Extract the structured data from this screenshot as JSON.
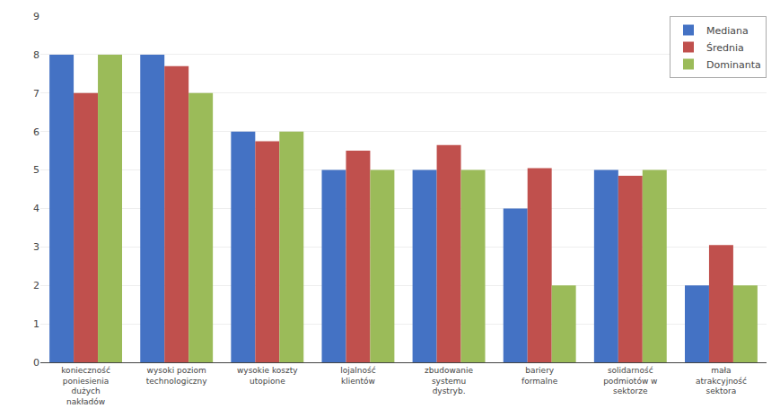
{
  "chart_data": {
    "type": "bar",
    "categories": [
      "konieczność\nponiesienia\ndużych\nnakładów",
      "wysoki poziom\ntechnologiczny",
      "wysokie koszty\nutopione",
      "lojalność\nklientów",
      "zbudowanie\nsystemu\ndystryb.",
      "bariery\nformalne",
      "solidarność\npodmiotów w\nsektorze",
      "mała\natrakcyjność\nsektora"
    ],
    "series": [
      {
        "name": "Mediana",
        "color": "#4472C4",
        "values": [
          8.0,
          8.0,
          6.0,
          5.0,
          5.0,
          4.0,
          5.0,
          2.0
        ]
      },
      {
        "name": "Średnia",
        "color": "#C0504D",
        "values": [
          7.0,
          7.7,
          5.75,
          5.5,
          5.65,
          5.05,
          4.85,
          3.05
        ]
      },
      {
        "name": "Dominanta",
        "color": "#9BBB59",
        "values": [
          8.0,
          7.0,
          6.0,
          5.0,
          5.0,
          2.0,
          5.0,
          2.0
        ]
      }
    ],
    "ylim": [
      0,
      9
    ],
    "yticks": [
      0,
      1,
      2,
      3,
      4,
      5,
      6,
      7,
      8,
      9
    ],
    "grid": true,
    "legend": "upper right"
  }
}
